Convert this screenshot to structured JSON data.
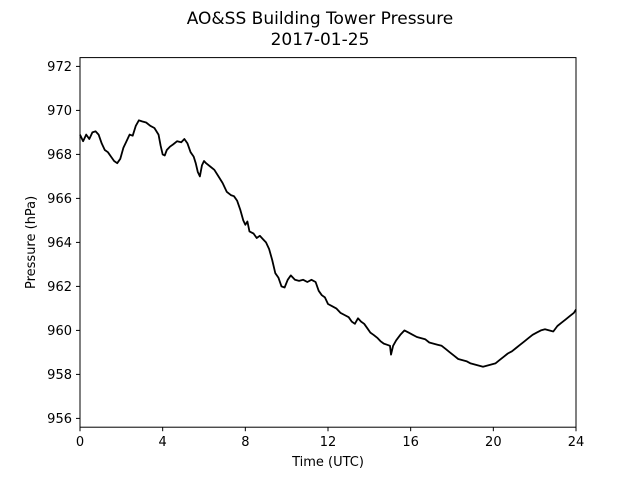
{
  "chart_data": {
    "type": "line",
    "title": "AO&SS Building Tower Pressure",
    "subtitle": "2017-01-25",
    "xlabel": "Time (UTC)",
    "ylabel": "Pressure (hPa)",
    "xlim": [
      0,
      24
    ],
    "ylim": [
      955.6,
      972.4
    ],
    "xticks": [
      0,
      4,
      8,
      12,
      16,
      20,
      24
    ],
    "yticks": [
      956,
      958,
      960,
      962,
      964,
      966,
      968,
      970,
      972
    ],
    "grid": false,
    "line_color": "#000000",
    "series": [
      {
        "x": [
          0,
          0.15,
          0.3,
          0.45,
          0.6,
          0.75,
          0.9,
          1.05,
          1.2,
          1.35,
          1.5,
          1.65,
          1.8,
          1.95,
          2.1,
          2.25,
          2.4,
          2.55,
          2.7,
          2.85,
          3.0,
          3.2,
          3.4,
          3.6,
          3.8,
          3.9,
          4.0,
          4.1,
          4.2,
          4.35,
          4.5,
          4.7,
          4.9,
          5.05,
          5.2,
          5.35,
          5.5,
          5.6,
          5.7,
          5.8,
          5.9,
          6.0,
          6.1,
          6.3,
          6.5,
          6.7,
          6.9,
          7.1,
          7.3,
          7.45,
          7.6,
          7.75,
          7.9,
          8.0,
          8.1,
          8.2,
          8.4,
          8.55,
          8.7,
          8.85,
          9.0,
          9.15,
          9.3,
          9.45,
          9.6,
          9.75,
          9.9,
          10.05,
          10.2,
          10.4,
          10.6,
          10.8,
          11.0,
          11.2,
          11.4,
          11.55,
          11.7,
          11.85,
          12.0,
          12.2,
          12.4,
          12.6,
          12.8,
          13.0,
          13.15,
          13.3,
          13.45,
          13.6,
          13.75,
          13.9,
          14.05,
          14.2,
          14.4,
          14.55,
          14.7,
          14.85,
          15.0,
          15.05,
          15.15,
          15.3,
          15.5,
          15.7,
          15.9,
          16.1,
          16.3,
          16.5,
          16.7,
          16.9,
          17.1,
          17.3,
          17.5,
          17.7,
          17.9,
          18.1,
          18.3,
          18.5,
          18.7,
          18.9,
          19.1,
          19.3,
          19.5,
          19.7,
          19.9,
          20.1,
          20.3,
          20.5,
          20.7,
          20.9,
          21.1,
          21.3,
          21.5,
          21.7,
          21.9,
          22.1,
          22.3,
          22.5,
          22.7,
          22.9,
          23.1,
          23.3,
          23.5,
          23.7,
          23.9,
          24.0
        ],
        "y": [
          968.9,
          968.6,
          968.9,
          968.7,
          969.0,
          969.05,
          968.9,
          968.5,
          968.2,
          968.1,
          967.9,
          967.7,
          967.6,
          967.8,
          968.3,
          968.6,
          968.9,
          968.85,
          969.3,
          969.55,
          969.5,
          969.45,
          969.3,
          969.2,
          968.9,
          968.4,
          968.0,
          967.95,
          968.2,
          968.35,
          968.45,
          968.6,
          968.55,
          968.7,
          968.5,
          968.1,
          967.9,
          967.6,
          967.2,
          967.0,
          967.5,
          967.7,
          967.6,
          967.45,
          967.3,
          967.0,
          966.7,
          966.3,
          966.15,
          966.1,
          965.9,
          965.5,
          965.0,
          964.8,
          964.95,
          964.5,
          964.4,
          964.2,
          964.3,
          964.15,
          964.0,
          963.7,
          963.2,
          962.6,
          962.4,
          962.0,
          961.95,
          962.3,
          962.5,
          962.3,
          962.25,
          962.3,
          962.2,
          962.3,
          962.2,
          961.8,
          961.6,
          961.5,
          961.2,
          961.1,
          961.0,
          960.8,
          960.7,
          960.6,
          960.4,
          960.3,
          960.55,
          960.4,
          960.3,
          960.1,
          959.9,
          959.8,
          959.65,
          959.5,
          959.4,
          959.35,
          959.3,
          958.9,
          959.3,
          959.55,
          959.8,
          960.0,
          959.9,
          959.8,
          959.7,
          959.65,
          959.6,
          959.45,
          959.4,
          959.35,
          959.3,
          959.15,
          959.0,
          958.85,
          958.7,
          958.65,
          958.6,
          958.5,
          958.45,
          958.4,
          958.35,
          958.4,
          958.45,
          958.5,
          958.65,
          958.8,
          958.95,
          959.05,
          959.2,
          959.35,
          959.5,
          959.65,
          959.8,
          959.9,
          960.0,
          960.05,
          960.0,
          959.95,
          960.2,
          960.35,
          960.5,
          960.65,
          960.8,
          960.95
        ]
      }
    ]
  }
}
